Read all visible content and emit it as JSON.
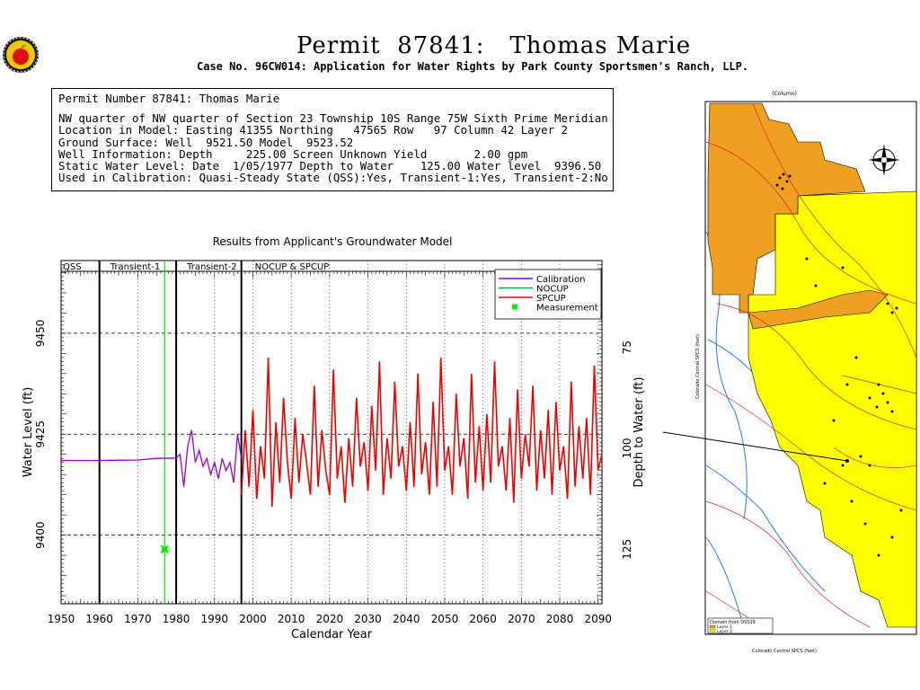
{
  "header": {
    "title": "Permit  87841:   Thomas Marie",
    "subtitle": "Case No. 96CW014: Application for Water Rights by Park County Sportsmen's Ranch, LLP."
  },
  "info_box": {
    "lines": [
      "Permit Number 87841: Thomas Marie",
      "NW quarter of NW quarter of Section 23 Township 10S Range 75W Sixth Prime Meridian",
      "Location in Model: Easting 41355 Northing   47565 Row   97 Column 42 Layer 2",
      "Ground Surface: Well  9521.50 Model  9523.52",
      "Well Information: Depth     225.00 Screen Unknown Yield       2.00 gpm",
      "Static Water Level: Date  1/05/1977 Depth to Water    125.00 Water level  9396.50",
      "Used in Calibration: Quasi-Steady State (QSS):Yes, Transient-1:Yes, Transient-2:No"
    ]
  },
  "colors": {
    "calibration": "#9900cc",
    "nocup": "#00aa55",
    "spcup": "#ee0000",
    "measurement": "#00ee00",
    "map_orange": "#f0a020",
    "map_yellow": "#ffff00"
  },
  "chart_data": {
    "type": "line",
    "title": "Results from Applicant's Groundwater Model",
    "xlabel": "Calendar Year",
    "ylabel": "Water Level (ft)",
    "ylabel_right": "Depth to Water (ft)",
    "xlim": [
      1950,
      2091
    ],
    "ylim": [
      9383,
      9468
    ],
    "x_ticks": [
      1950,
      1960,
      1970,
      1980,
      1990,
      2000,
      2010,
      2020,
      2030,
      2040,
      2050,
      2060,
      2070,
      2080,
      2090
    ],
    "y_ticks": [
      9400,
      9425,
      9450
    ],
    "y_ticks_right": [
      75,
      100,
      125
    ],
    "grid": true,
    "legend_position": "top-right",
    "legend": [
      "Calibration",
      "NOCUP",
      "SPCUP",
      "Measurement"
    ],
    "periods": [
      {
        "label": "QSS",
        "start": 1950,
        "end": 1960
      },
      {
        "label": "Transient-1",
        "start": 1960,
        "end": 1980
      },
      {
        "label": "Transient-2",
        "start": 1980,
        "end": 1997
      },
      {
        "label": "NOCUP  & SPCUP",
        "start": 1997,
        "end": 2091
      }
    ],
    "period_lines": [
      1960,
      1980,
      1997
    ],
    "measurement_line": 1977,
    "measurement": {
      "x": 1977,
      "y": 9396.5
    },
    "series": [
      {
        "name": "Calibration",
        "x": [
          1950,
          1960,
          1970,
          1975,
          1980,
          1981,
          1982,
          1983,
          1984,
          1985,
          1986,
          1987,
          1988,
          1989,
          1990,
          1991,
          1992,
          1993,
          1994,
          1995,
          1996,
          1997
        ],
        "y": [
          9418.5,
          9418.5,
          9418.6,
          9419.0,
          9419.1,
          9420,
          9412,
          9422,
          9426,
          9418,
          9421,
          9417,
          9419,
          9415,
          9418,
          9414,
          9419,
          9416,
          9418,
          9413,
          9425,
          9419
        ]
      },
      {
        "name": "SPCUP",
        "x": [
          1997,
          1998,
          1999,
          2000,
          2001,
          2002,
          2003,
          2004,
          2005,
          2006,
          2007,
          2008,
          2009,
          2010,
          2011,
          2012,
          2013,
          2014,
          2015,
          2016,
          2017,
          2018,
          2019,
          2020,
          2021,
          2022,
          2023,
          2024,
          2025,
          2026,
          2027,
          2028,
          2029,
          2030,
          2031,
          2032,
          2033,
          2034,
          2035,
          2036,
          2037,
          2038,
          2039,
          2040,
          2041,
          2042,
          2043,
          2044,
          2045,
          2046,
          2047,
          2048,
          2049,
          2050,
          2051,
          2052,
          2053,
          2054,
          2055,
          2056,
          2057,
          2058,
          2059,
          2060,
          2061,
          2062,
          2063,
          2064,
          2065,
          2066,
          2067,
          2068,
          2069,
          2070,
          2071,
          2072,
          2073,
          2074,
          2075,
          2076,
          2077,
          2078,
          2079,
          2080,
          2081,
          2082,
          2083,
          2084,
          2085,
          2086,
          2087,
          2088,
          2089,
          2090,
          2091
        ],
        "y": [
          9410,
          9426,
          9412,
          9431,
          9409,
          9422,
          9414,
          9444,
          9407,
          9428,
          9413,
          9434,
          9418,
          9409,
          9429,
          9413,
          9425,
          9418,
          9410,
          9437,
          9412,
          9426,
          9416,
          9410,
          9441,
          9414,
          9422,
          9408,
          9424,
          9412,
          9434,
          9417,
          9423,
          9411,
          9432,
          9416,
          9443,
          9410,
          9424,
          9414,
          9438,
          9417,
          9422,
          9411,
          9428,
          9412,
          9440,
          9415,
          9423,
          9410,
          9433,
          9412,
          9444,
          9416,
          9422,
          9410,
          9435,
          9417,
          9424,
          9409,
          9440,
          9413,
          9427,
          9411,
          9430,
          9413,
          9443,
          9417,
          9422,
          9411,
          9429,
          9408,
          9436,
          9414,
          9425,
          9417,
          9437,
          9411,
          9426,
          9414,
          9431,
          9410,
          9433,
          9416,
          9422,
          9409,
          9438,
          9412,
          9427,
          9414,
          9429,
          9410,
          9442,
          9416,
          9420
        ]
      }
    ]
  },
  "map": {
    "top_label": "(Column)",
    "legend_title": "Domain  from  OSS19",
    "legend_items": [
      "Layer 1",
      "Layer 2"
    ],
    "bottom_label": "Colorado Central SPCS (feet)",
    "left_label": "Colorado Central SPCS (feet)"
  }
}
